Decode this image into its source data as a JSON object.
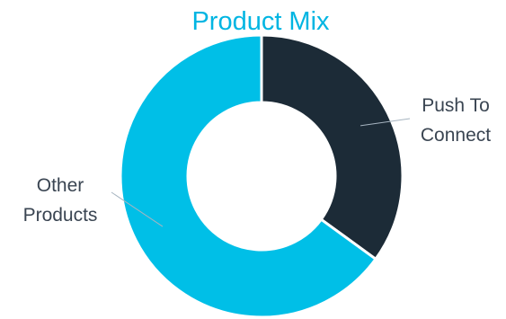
{
  "chart_data": {
    "type": "pie",
    "variant": "donut",
    "title": "Product Mix",
    "slices": [
      {
        "label_lines": [
          "Push To",
          "Connect"
        ],
        "value": 35,
        "color": "#1c2b37"
      },
      {
        "label_lines": [
          "Other",
          "Products"
        ],
        "value": 65,
        "color": "#00bfe7"
      }
    ],
    "legend": "none"
  }
}
